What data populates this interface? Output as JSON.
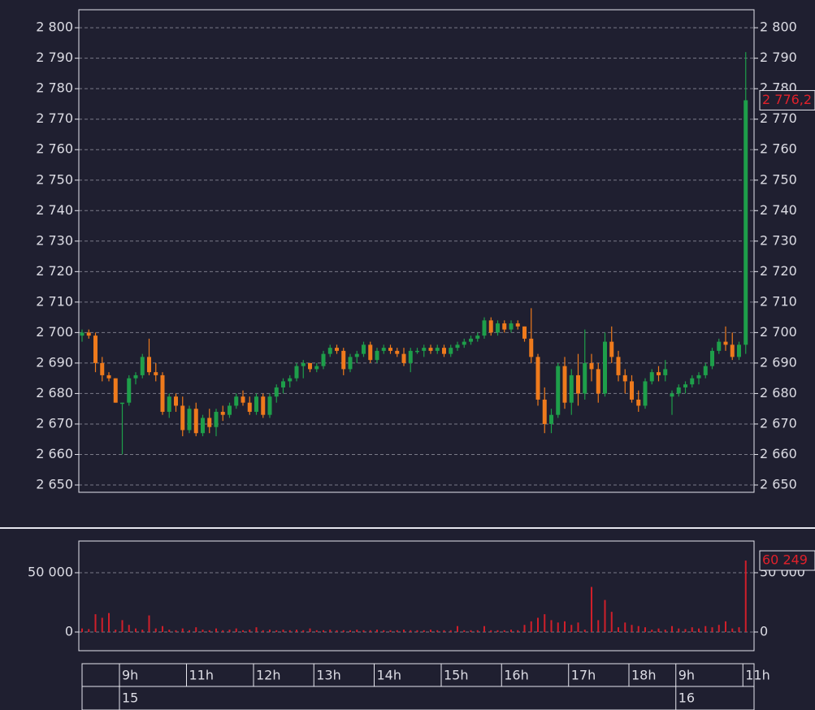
{
  "chart_data": {
    "type": "candlestick",
    "up_color": "#1e9e4a",
    "down_color": "#ee7a1c",
    "volume_color": "#d01f2a",
    "grid": true,
    "ylim": [
      2647.6,
      2805.9
    ],
    "yticks": [
      {
        "value": 2650,
        "label": "2 650"
      },
      {
        "value": 2660,
        "label": "2 660"
      },
      {
        "value": 2670,
        "label": "2 670"
      },
      {
        "value": 2680,
        "label": "2 680"
      },
      {
        "value": 2690,
        "label": "2 690"
      },
      {
        "value": 2700,
        "label": "2 700"
      },
      {
        "value": 2710,
        "label": "2 710"
      },
      {
        "value": 2720,
        "label": "2 720"
      },
      {
        "value": 2730,
        "label": "2 730"
      },
      {
        "value": 2740,
        "label": "2 740"
      },
      {
        "value": 2750,
        "label": "2 750"
      },
      {
        "value": 2760,
        "label": "2 760"
      },
      {
        "value": 2770,
        "label": "2 770"
      },
      {
        "value": 2780,
        "label": "2 780"
      },
      {
        "value": 2790,
        "label": "2 790"
      },
      {
        "value": 2800,
        "label": "2 800"
      }
    ],
    "volume_ylim": [
      -15750,
      76700
    ],
    "volume_yticks": [
      0,
      {
        "value": 50000,
        "label": "50 000"
      }
    ],
    "categories": [
      null,
      null,
      null,
      null,
      null,
      null,
      "9h",
      null,
      null,
      null,
      null,
      null,
      null,
      null,
      null,
      null,
      "11h",
      null,
      null,
      null,
      null,
      null,
      null,
      null,
      null,
      null,
      "12h",
      null,
      null,
      null,
      null,
      null,
      null,
      null,
      null,
      "13h",
      null,
      null,
      null,
      null,
      null,
      null,
      null,
      null,
      "14h",
      null,
      null,
      null,
      null,
      null,
      null,
      null,
      null,
      null,
      "15h",
      null,
      null,
      null,
      null,
      null,
      null,
      null,
      null,
      "16h",
      null,
      null,
      null,
      null,
      null,
      null,
      null,
      null,
      null,
      "17h",
      null,
      null,
      null,
      null,
      null,
      null,
      null,
      null,
      "18h",
      null,
      null,
      null,
      null,
      null,
      null,
      "9h",
      null,
      null,
      null,
      null,
      null,
      null,
      null,
      null,
      null,
      "11h"
    ],
    "days": [
      null,
      null,
      null,
      null,
      null,
      null,
      "15",
      null,
      null,
      null,
      null,
      null,
      null,
      null,
      null,
      null,
      null,
      null,
      null,
      null,
      null,
      null,
      null,
      null,
      null,
      null,
      null,
      null,
      null,
      null,
      null,
      null,
      null,
      null,
      null,
      null,
      null,
      null,
      null,
      null,
      null,
      null,
      null,
      null,
      null,
      null,
      null,
      null,
      null,
      null,
      null,
      null,
      null,
      null,
      null,
      null,
      null,
      null,
      null,
      null,
      null,
      null,
      null,
      null,
      null,
      null,
      null,
      null,
      null,
      null,
      null,
      null,
      null,
      null,
      null,
      null,
      null,
      null,
      null,
      null,
      null,
      null,
      null,
      null,
      null,
      null,
      null,
      null,
      null,
      "16",
      null,
      null,
      null,
      null,
      null,
      null,
      null,
      null,
      null,
      null
    ],
    "open": [
      2699,
      2700,
      2699,
      2690,
      2686,
      2685,
      2677,
      2677,
      2685,
      2686,
      2692,
      2687,
      2686,
      2674,
      2679,
      2676,
      2668,
      2675,
      2667,
      2672,
      2669,
      2674,
      2673,
      2676,
      2679,
      2677,
      2674,
      2679,
      2673,
      2679,
      2682,
      2684,
      2685,
      2689,
      2690,
      2688,
      2689,
      2693,
      2695,
      2694,
      2688,
      2692,
      2693,
      2696,
      2691,
      2694,
      2695,
      2694,
      2693,
      2690,
      2694,
      2694,
      2695,
      2694,
      2695,
      2693,
      2695,
      2696,
      2697,
      2698,
      2699,
      2704,
      2700,
      2703,
      2701,
      2703,
      2702,
      2698,
      2692,
      2678,
      2670,
      2673,
      2689,
      2677,
      2686,
      2680,
      2690,
      2688,
      2680,
      2697,
      2692,
      2686,
      2684,
      2678,
      2676,
      2684,
      2687,
      2686,
      2679,
      2680,
      2682,
      2683,
      2685,
      2686,
      2689,
      2694,
      2697,
      2696,
      2692,
      2696
    ],
    "high": [
      2701,
      2701,
      2700,
      2692,
      2687,
      2685,
      2677,
      2686,
      2687,
      2693,
      2698,
      2690,
      2687,
      2680,
      2680,
      2679,
      2676,
      2677,
      2673,
      2675,
      2675,
      2676,
      2677,
      2680,
      2681,
      2679,
      2680,
      2680,
      2680,
      2683,
      2685,
      2686,
      2690,
      2691,
      2690,
      2690,
      2694,
      2696,
      2696,
      2695,
      2693,
      2694,
      2697,
      2697,
      2695,
      2696,
      2696,
      2695,
      2695,
      2695,
      2695,
      2696,
      2696,
      2696,
      2696,
      2696,
      2697,
      2698,
      2699,
      2700,
      2705,
      2705,
      2704,
      2704,
      2704,
      2704,
      2702,
      2708,
      2693,
      2682,
      2675,
      2690,
      2692,
      2688,
      2693,
      2701,
      2693,
      2690,
      2700,
      2702,
      2694,
      2688,
      2686,
      2681,
      2685,
      2688,
      2689,
      2691,
      2681,
      2683,
      2684,
      2686,
      2687,
      2690,
      2695,
      2698,
      2702,
      2700,
      2697,
      2792
    ],
    "low": [
      2697,
      2698,
      2687,
      2684,
      2684,
      2677,
      2660,
      2676,
      2683,
      2685,
      2686,
      2684,
      2673,
      2672,
      2674,
      2666,
      2667,
      2666,
      2666,
      2667,
      2666,
      2671,
      2672,
      2675,
      2676,
      2673,
      2673,
      2672,
      2672,
      2677,
      2680,
      2682,
      2684,
      2685,
      2687,
      2687,
      2688,
      2692,
      2693,
      2686,
      2687,
      2690,
      2692,
      2690,
      2690,
      2693,
      2693,
      2692,
      2689,
      2687,
      2693,
      2692,
      2693,
      2693,
      2692,
      2692,
      2694,
      2695,
      2696,
      2697,
      2698,
      2699,
      2699,
      2700,
      2700,
      2701,
      2697,
      2690,
      2676,
      2667,
      2667,
      2672,
      2675,
      2673,
      2676,
      2678,
      2684,
      2677,
      2679,
      2690,
      2684,
      2680,
      2677,
      2674,
      2675,
      2683,
      2684,
      2684,
      2673,
      2679,
      2680,
      2682,
      2683,
      2685,
      2688,
      2693,
      2694,
      2691,
      2691,
      2693
    ],
    "close": [
      2700,
      2699,
      2690,
      2686,
      2685,
      2677,
      2677,
      2685,
      2686,
      2692,
      2687,
      2686,
      2674,
      2679,
      2676,
      2668,
      2675,
      2667,
      2672,
      2669,
      2674,
      2673,
      2676,
      2679,
      2677,
      2674,
      2679,
      2673,
      2679,
      2682,
      2684,
      2685,
      2689,
      2690,
      2688,
      2689,
      2693,
      2695,
      2694,
      2688,
      2692,
      2693,
      2696,
      2691,
      2694,
      2695,
      2694,
      2693,
      2690,
      2694,
      2694,
      2695,
      2694,
      2695,
      2693,
      2695,
      2696,
      2697,
      2698,
      2699,
      2704,
      2700,
      2703,
      2701,
      2703,
      2702,
      2698,
      2692,
      2678,
      2670,
      2673,
      2689,
      2677,
      2686,
      2680,
      2690,
      2688,
      2680,
      2697,
      2692,
      2686,
      2684,
      2678,
      2676,
      2684,
      2687,
      2686,
      2688,
      2680,
      2682,
      2683,
      2685,
      2686,
      2689,
      2694,
      2697,
      2696,
      2692,
      2696,
      2776.2
    ],
    "volume": [
      3000,
      2500,
      15000,
      12000,
      16000,
      2000,
      10000,
      6000,
      3000,
      2000,
      14000,
      3000,
      5000,
      2000,
      1500,
      3000,
      1500,
      4000,
      2000,
      1500,
      3000,
      1500,
      2000,
      3000,
      1500,
      2000,
      4000,
      1500,
      2000,
      1500,
      2000,
      1500,
      2000,
      1500,
      3000,
      1500,
      1500,
      2000,
      1500,
      1500,
      1500,
      2000,
      1500,
      1500,
      2000,
      1500,
      1500,
      1500,
      2000,
      1500,
      1500,
      1500,
      2000,
      1500,
      1500,
      1500,
      5000,
      1500,
      1500,
      1500,
      5000,
      1500,
      1500,
      1500,
      2000,
      1500,
      6000,
      9000,
      12000,
      15000,
      10000,
      8000,
      9000,
      6000,
      8000,
      2000,
      38000,
      10000,
      27000,
      17000,
      4000,
      8000,
      6000,
      5000,
      4000,
      2000,
      3000,
      2000,
      5000,
      3000,
      2500,
      4000,
      3000,
      5000,
      4000,
      6000,
      9000,
      3000,
      4000,
      60249
    ],
    "last_close_label": "2 776,2",
    "last_volume_label": "60 249"
  }
}
